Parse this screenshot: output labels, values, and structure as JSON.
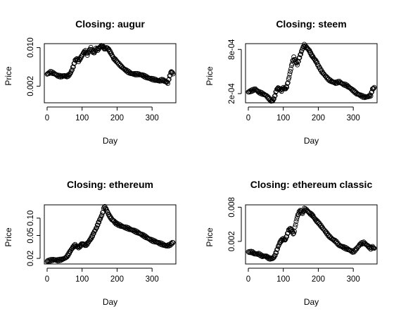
{
  "chart_data": [
    {
      "type": "scatter",
      "title": "Closing: augur",
      "xlabel": "Day",
      "ylabel": "Price",
      "xlim": [
        -8,
        368
      ],
      "ylim": [
        0.001,
        0.0118
      ],
      "xticks": [
        0,
        100,
        200,
        300
      ],
      "yticks": [
        0.002,
        0.01
      ],
      "ytick_labels": [
        "0.002",
        "0.010"
      ],
      "yscale": "log",
      "grid": false,
      "series": [
        {
          "x": [
            0,
            10,
            20,
            30,
            40,
            50,
            55,
            60,
            65,
            70,
            75,
            80,
            85,
            90,
            95,
            100,
            105,
            110,
            115,
            120,
            125,
            130,
            135,
            140,
            145,
            150,
            155,
            160,
            165,
            170,
            175,
            180,
            185,
            190,
            195,
            200,
            210,
            220,
            230,
            240,
            250,
            260,
            270,
            280,
            290,
            300,
            310,
            320,
            330,
            340,
            345,
            350,
            355,
            360
          ],
          "y": [
            0.0033,
            0.0036,
            0.0034,
            0.0031,
            0.003,
            0.0031,
            0.003,
            0.0031,
            0.0033,
            0.0038,
            0.0046,
            0.0058,
            0.0063,
            0.0057,
            0.0064,
            0.0072,
            0.0083,
            0.0086,
            0.0074,
            0.0088,
            0.0098,
            0.0085,
            0.008,
            0.0096,
            0.0092,
            0.01,
            0.0108,
            0.0104,
            0.0094,
            0.01,
            0.0094,
            0.0084,
            0.0074,
            0.0064,
            0.006,
            0.0055,
            0.0047,
            0.0041,
            0.0037,
            0.0034,
            0.0033,
            0.0033,
            0.0032,
            0.003,
            0.0028,
            0.0027,
            0.0026,
            0.0025,
            0.0026,
            0.0024,
            0.0023,
            0.003,
            0.0037,
            0.0034
          ]
        }
      ]
    },
    {
      "type": "scatter",
      "title": "Closing: steem",
      "xlabel": "Day",
      "ylabel": "Price",
      "xlim": [
        -8,
        368
      ],
      "ylim": [
        0.00015,
        0.00096
      ],
      "xticks": [
        0,
        100,
        200,
        300
      ],
      "yticks": [
        0.0002,
        0.0008
      ],
      "ytick_labels": [
        "2e-04",
        "8e-04"
      ],
      "yscale": "log",
      "grid": false,
      "series": [
        {
          "x": [
            0,
            10,
            20,
            30,
            40,
            50,
            60,
            65,
            70,
            75,
            80,
            85,
            90,
            95,
            100,
            105,
            110,
            115,
            120,
            125,
            130,
            135,
            140,
            145,
            150,
            155,
            160,
            165,
            170,
            175,
            180,
            185,
            190,
            195,
            200,
            210,
            220,
            230,
            240,
            250,
            260,
            270,
            280,
            290,
            300,
            310,
            320,
            330,
            340,
            350,
            355,
            360
          ],
          "y": [
            0.00021,
            0.00022,
            0.00023,
            0.00021,
            0.0002,
            0.00019,
            0.00017,
            0.00016,
            0.00016,
            0.00018,
            0.00022,
            0.00024,
            0.00023,
            0.00022,
            0.00024,
            0.00023,
            0.00025,
            0.00031,
            0.0004,
            0.00052,
            0.00062,
            0.00055,
            0.0005,
            0.0006,
            0.0007,
            0.00083,
            0.00092,
            0.00086,
            0.00082,
            0.00076,
            0.00068,
            0.00063,
            0.00058,
            0.00054,
            0.00048,
            0.0004,
            0.00035,
            0.00031,
            0.00029,
            0.00028,
            0.00029,
            0.00027,
            0.00026,
            0.00024,
            0.00022,
            0.0002,
            0.00019,
            0.00018,
            0.00018,
            0.00019,
            0.00023,
            0.00024
          ]
        }
      ]
    },
    {
      "type": "scatter",
      "title": "Closing: ethereum",
      "xlabel": "Day",
      "ylabel": "Price",
      "xlim": [
        -8,
        368
      ],
      "ylim": [
        0.016,
        0.17
      ],
      "xticks": [
        0,
        100,
        200,
        300
      ],
      "yticks": [
        0.02,
        0.05,
        0.1
      ],
      "ytick_labels": [
        "0.02",
        "0.05",
        "0.10"
      ],
      "yscale": "log",
      "grid": false,
      "series": [
        {
          "x": [
            0,
            10,
            20,
            30,
            40,
            50,
            55,
            60,
            65,
            70,
            75,
            80,
            85,
            90,
            95,
            100,
            105,
            110,
            115,
            120,
            125,
            130,
            135,
            140,
            145,
            150,
            155,
            160,
            163,
            165,
            170,
            175,
            180,
            185,
            190,
            195,
            200,
            210,
            220,
            230,
            240,
            250,
            260,
            270,
            280,
            290,
            300,
            310,
            320,
            330,
            340,
            350,
            360
          ],
          "y": [
            0.018,
            0.0185,
            0.019,
            0.0185,
            0.019,
            0.02,
            0.021,
            0.023,
            0.026,
            0.029,
            0.032,
            0.034,
            0.032,
            0.031,
            0.033,
            0.036,
            0.035,
            0.034,
            0.036,
            0.04,
            0.044,
            0.05,
            0.058,
            0.066,
            0.078,
            0.092,
            0.108,
            0.13,
            0.158,
            0.155,
            0.14,
            0.118,
            0.105,
            0.095,
            0.09,
            0.083,
            0.079,
            0.074,
            0.07,
            0.067,
            0.063,
            0.06,
            0.056,
            0.052,
            0.048,
            0.044,
            0.041,
            0.039,
            0.037,
            0.035,
            0.033,
            0.034,
            0.038
          ]
        }
      ]
    },
    {
      "type": "scatter",
      "title": "Closing: ethereum classic",
      "xlabel": "Day",
      "ylabel": "Price",
      "xlim": [
        -8,
        368
      ],
      "ylim": [
        0.0008,
        0.0088
      ],
      "xticks": [
        0,
        100,
        200,
        300
      ],
      "yticks": [
        0.002,
        0.008
      ],
      "ytick_labels": [
        "0.002",
        "0.008"
      ],
      "yscale": "log",
      "grid": false,
      "series": [
        {
          "x": [
            0,
            10,
            20,
            30,
            40,
            50,
            60,
            70,
            75,
            80,
            85,
            90,
            95,
            100,
            105,
            110,
            115,
            120,
            125,
            130,
            135,
            140,
            145,
            150,
            155,
            160,
            165,
            170,
            175,
            180,
            185,
            190,
            195,
            200,
            210,
            220,
            230,
            240,
            250,
            260,
            270,
            280,
            290,
            300,
            310,
            320,
            330,
            340,
            350,
            355,
            360
          ],
          "y": [
            0.0013,
            0.0013,
            0.0012,
            0.0012,
            0.0011,
            0.0011,
            0.001,
            0.001,
            0.0011,
            0.0013,
            0.0016,
            0.0019,
            0.0021,
            0.0022,
            0.0021,
            0.0025,
            0.0031,
            0.0034,
            0.003,
            0.0027,
            0.004,
            0.0055,
            0.0065,
            0.007,
            0.0062,
            0.0075,
            0.0072,
            0.0068,
            0.0063,
            0.006,
            0.0056,
            0.005,
            0.0046,
            0.0043,
            0.0036,
            0.003,
            0.0025,
            0.0022,
            0.002,
            0.0017,
            0.0016,
            0.0015,
            0.0014,
            0.0013,
            0.0015,
            0.0018,
            0.0019,
            0.0017,
            0.0015,
            0.0016,
            0.0015
          ]
        }
      ]
    }
  ]
}
